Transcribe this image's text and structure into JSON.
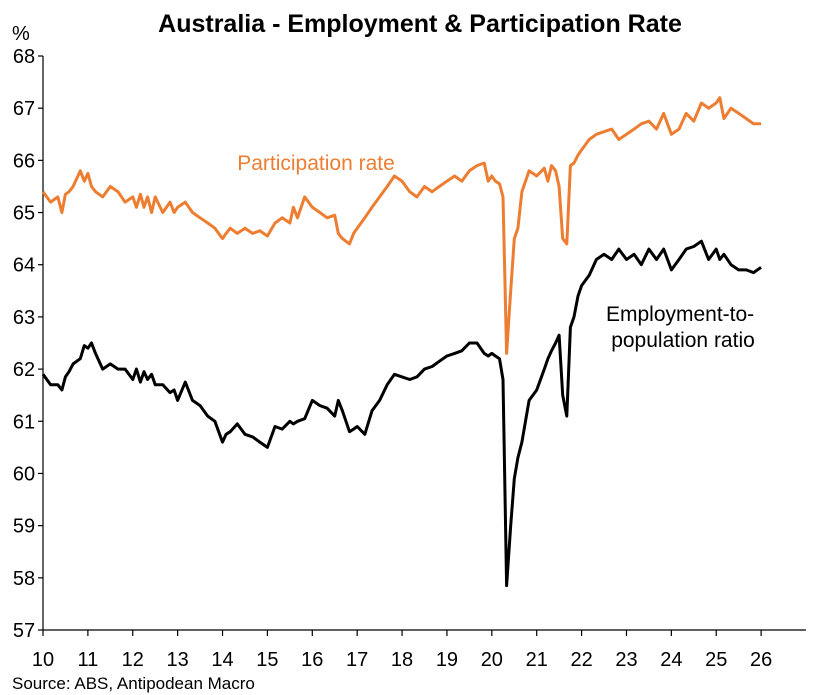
{
  "chart_data": {
    "type": "line",
    "title": "Australia - Employment & Participation Rate",
    "y_unit": "%",
    "ylim": [
      57,
      68
    ],
    "y_ticks": [
      57,
      58,
      59,
      60,
      61,
      62,
      63,
      64,
      65,
      66,
      67,
      68
    ],
    "xlim": [
      10,
      27
    ],
    "x_ticks": [
      10,
      11,
      12,
      13,
      14,
      15,
      16,
      17,
      18,
      19,
      20,
      21,
      22,
      23,
      24,
      25,
      26
    ],
    "grid": false,
    "legend": "none",
    "source": "Source: ABS, Antipodean Macro",
    "series": [
      {
        "name": "Participation rate",
        "label_lines": [
          "Participation rate"
        ],
        "color": "#ED7D31",
        "x": [
          10.0,
          10.17,
          10.33,
          10.42,
          10.5,
          10.58,
          10.67,
          10.83,
          10.92,
          11.0,
          11.08,
          11.17,
          11.33,
          11.5,
          11.67,
          11.83,
          12.0,
          12.08,
          12.17,
          12.25,
          12.33,
          12.42,
          12.5,
          12.67,
          12.83,
          12.92,
          13.0,
          13.17,
          13.33,
          13.5,
          13.67,
          13.83,
          14.0,
          14.08,
          14.17,
          14.33,
          14.5,
          14.67,
          14.83,
          15.0,
          15.17,
          15.33,
          15.5,
          15.58,
          15.67,
          15.83,
          16.0,
          16.17,
          16.33,
          16.5,
          16.58,
          16.67,
          16.83,
          16.92,
          17.0,
          17.17,
          17.33,
          17.5,
          17.67,
          17.83,
          18.0,
          18.17,
          18.33,
          18.5,
          18.67,
          18.83,
          19.0,
          19.17,
          19.33,
          19.5,
          19.67,
          19.83,
          19.92,
          20.0,
          20.08,
          20.17,
          20.25,
          20.33,
          20.42,
          20.5,
          20.58,
          20.67,
          20.83,
          21.0,
          21.17,
          21.25,
          21.33,
          21.42,
          21.5,
          21.58,
          21.67,
          21.75,
          21.83,
          21.92,
          22.0,
          22.17,
          22.33,
          22.5,
          22.67,
          22.83,
          23.0,
          23.17,
          23.33,
          23.5,
          23.67,
          23.83,
          24.0,
          24.17,
          24.33,
          24.5,
          24.67,
          24.83,
          25.0,
          25.08,
          25.17,
          25.33,
          25.5,
          25.67,
          25.83,
          26.0
        ],
        "values": [
          65.4,
          65.2,
          65.3,
          65.0,
          65.35,
          65.4,
          65.5,
          65.8,
          65.6,
          65.75,
          65.5,
          65.4,
          65.3,
          65.5,
          65.4,
          65.2,
          65.3,
          65.1,
          65.35,
          65.1,
          65.3,
          65.0,
          65.3,
          65.0,
          65.2,
          65.0,
          65.1,
          65.2,
          65.0,
          64.9,
          64.8,
          64.7,
          64.5,
          64.6,
          64.7,
          64.6,
          64.7,
          64.6,
          64.65,
          64.55,
          64.8,
          64.9,
          64.8,
          65.1,
          64.9,
          65.3,
          65.1,
          65.0,
          64.9,
          64.95,
          64.6,
          64.5,
          64.4,
          64.6,
          64.7,
          64.9,
          65.1,
          65.3,
          65.5,
          65.7,
          65.6,
          65.4,
          65.3,
          65.5,
          65.4,
          65.5,
          65.6,
          65.7,
          65.6,
          65.8,
          65.9,
          65.95,
          65.6,
          65.7,
          65.6,
          65.55,
          65.3,
          62.3,
          63.5,
          64.5,
          64.7,
          65.4,
          65.8,
          65.7,
          65.85,
          65.6,
          65.9,
          65.8,
          65.5,
          64.5,
          64.4,
          65.9,
          65.95,
          66.1,
          66.2,
          66.4,
          66.5,
          66.55,
          66.6,
          66.4,
          66.5,
          66.6,
          66.7,
          66.75,
          66.6,
          66.9,
          66.5,
          66.6,
          66.9,
          66.75,
          67.1,
          67.0,
          67.1,
          67.2,
          66.8,
          67.0,
          66.9,
          66.8,
          66.7,
          66.7
        ]
      },
      {
        "name": "Employment-to-population ratio",
        "label_lines": [
          "Employment-to-",
          "population ratio"
        ],
        "color": "#000000",
        "x": [
          10.0,
          10.17,
          10.33,
          10.42,
          10.5,
          10.58,
          10.67,
          10.83,
          10.92,
          11.0,
          11.08,
          11.17,
          11.33,
          11.5,
          11.67,
          11.83,
          12.0,
          12.08,
          12.17,
          12.25,
          12.33,
          12.42,
          12.5,
          12.67,
          12.83,
          12.92,
          13.0,
          13.17,
          13.33,
          13.5,
          13.67,
          13.83,
          14.0,
          14.08,
          14.17,
          14.33,
          14.5,
          14.67,
          14.83,
          15.0,
          15.17,
          15.33,
          15.5,
          15.58,
          15.67,
          15.83,
          16.0,
          16.17,
          16.33,
          16.5,
          16.58,
          16.67,
          16.83,
          16.92,
          17.0,
          17.17,
          17.33,
          17.5,
          17.67,
          17.83,
          18.0,
          18.17,
          18.33,
          18.5,
          18.67,
          18.83,
          19.0,
          19.17,
          19.33,
          19.5,
          19.67,
          19.83,
          19.92,
          20.0,
          20.08,
          20.17,
          20.25,
          20.33,
          20.42,
          20.5,
          20.58,
          20.67,
          20.83,
          21.0,
          21.17,
          21.25,
          21.33,
          21.42,
          21.5,
          21.58,
          21.67,
          21.75,
          21.83,
          21.92,
          22.0,
          22.17,
          22.33,
          22.5,
          22.67,
          22.83,
          23.0,
          23.17,
          23.33,
          23.5,
          23.67,
          23.83,
          24.0,
          24.17,
          24.33,
          24.5,
          24.67,
          24.83,
          25.0,
          25.08,
          25.17,
          25.33,
          25.5,
          25.67,
          25.83,
          26.0
        ],
        "values": [
          61.9,
          61.7,
          61.7,
          61.6,
          61.85,
          61.95,
          62.1,
          62.2,
          62.45,
          62.4,
          62.5,
          62.3,
          62.0,
          62.1,
          62.0,
          62.0,
          61.8,
          62.0,
          61.75,
          61.95,
          61.8,
          61.9,
          61.7,
          61.7,
          61.55,
          61.6,
          61.4,
          61.75,
          61.4,
          61.3,
          61.1,
          61.0,
          60.6,
          60.75,
          60.8,
          60.95,
          60.75,
          60.7,
          60.6,
          60.5,
          60.9,
          60.85,
          61.0,
          60.95,
          61.0,
          61.05,
          61.4,
          61.3,
          61.25,
          61.1,
          61.4,
          61.2,
          60.8,
          60.85,
          60.9,
          60.75,
          61.2,
          61.4,
          61.7,
          61.9,
          61.85,
          61.8,
          61.85,
          62.0,
          62.05,
          62.15,
          62.25,
          62.3,
          62.35,
          62.5,
          62.5,
          62.3,
          62.25,
          62.3,
          62.25,
          62.2,
          61.8,
          57.85,
          59.0,
          59.9,
          60.3,
          60.6,
          61.4,
          61.6,
          62.0,
          62.2,
          62.35,
          62.5,
          62.65,
          61.5,
          61.1,
          62.8,
          63.0,
          63.4,
          63.6,
          63.8,
          64.1,
          64.2,
          64.1,
          64.3,
          64.1,
          64.2,
          64.0,
          64.3,
          64.1,
          64.3,
          63.9,
          64.1,
          64.3,
          64.35,
          64.45,
          64.1,
          64.3,
          64.1,
          64.2,
          64.0,
          63.9,
          63.9,
          63.85,
          63.95
        ]
      }
    ]
  }
}
